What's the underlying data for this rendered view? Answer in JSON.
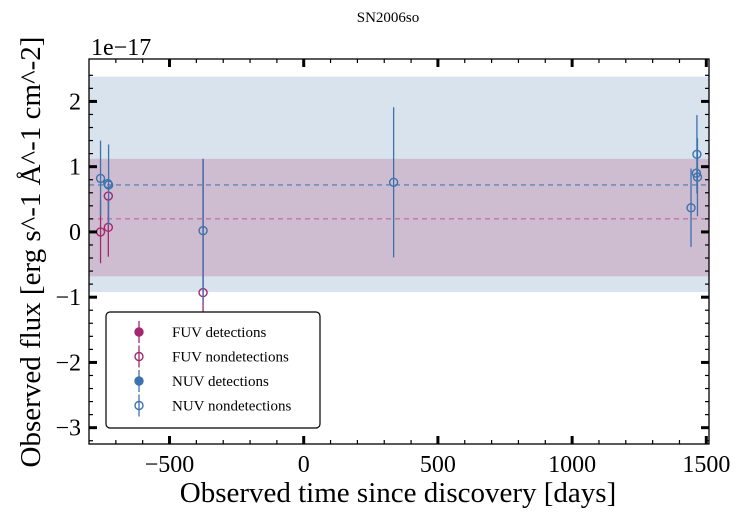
{
  "chart_data": {
    "type": "scatter",
    "title": "SN2006so",
    "xlabel": "Observed time since discovery [days]",
    "ylabel": "Observed flux [erg s^-1 Å^-1 cm^-2]",
    "offset_text": "1e−17",
    "xlim": [
      -800,
      1510
    ],
    "ylim": [
      -3.25,
      2.65
    ],
    "y_scale_factor": 1e-17,
    "xticks": [
      -500,
      0,
      500,
      1000,
      1500
    ],
    "xtick_labels": [
      "−500",
      "0",
      "500",
      "1000",
      "1500"
    ],
    "yticks": [
      -3,
      -2,
      -1,
      0,
      1,
      2
    ],
    "ytick_labels": [
      "−3",
      "−2",
      "−1",
      "0",
      "1",
      "2"
    ],
    "grid": false,
    "legend_position": "lower-left",
    "bands": [
      {
        "name": "NUV",
        "color": "#a9c0d8",
        "opacity": 0.45,
        "ymin": -0.92,
        "ymax": 2.38,
        "median": 0.72
      },
      {
        "name": "FUV",
        "color": "#b5658f",
        "opacity": 0.3,
        "ymin": -0.68,
        "ymax": 1.12,
        "median": 0.2
      }
    ],
    "series": [
      {
        "name": "FUV detections",
        "color": "#a3296f",
        "marker": "filled",
        "points": []
      },
      {
        "name": "FUV nondetections",
        "color": "#a3296f",
        "marker": "open",
        "points": [
          {
            "x": -757,
            "y": 0.0,
            "err": 0.48
          },
          {
            "x": -728,
            "y": 0.55,
            "err": 0.0
          },
          {
            "x": -728,
            "y": 0.07,
            "err": 0.45
          },
          {
            "x": -375,
            "y": -0.93,
            "err": 2.05
          }
        ]
      },
      {
        "name": "NUV detections",
        "color": "#3c72ad",
        "marker": "filled",
        "points": []
      },
      {
        "name": "NUV nondetections",
        "color": "#3c72ad",
        "marker": "open",
        "points": [
          {
            "x": -757,
            "y": 0.82,
            "err": 0.58
          },
          {
            "x": -730,
            "y": 0.74,
            "err": 0.0
          },
          {
            "x": -727,
            "y": 0.72,
            "err": 0.62
          },
          {
            "x": -375,
            "y": 0.02,
            "err": 1.1
          },
          {
            "x": 335,
            "y": 0.76,
            "err": 1.15
          },
          {
            "x": 1443,
            "y": 0.37,
            "err": 0.6
          },
          {
            "x": 1463,
            "y": 0.9,
            "err": 0.0
          },
          {
            "x": 1465,
            "y": 1.19,
            "err": 0.6
          },
          {
            "x": 1467,
            "y": 0.84,
            "err": 0.6
          }
        ]
      }
    ]
  }
}
